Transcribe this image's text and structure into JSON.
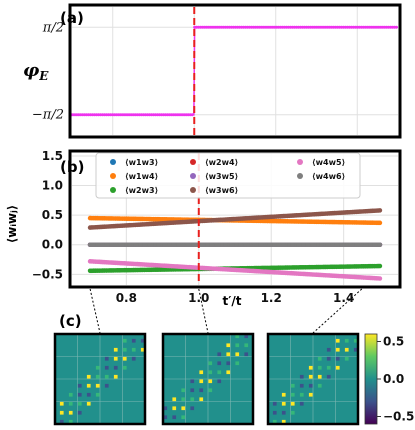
{
  "chart_data": [
    {
      "panel_label": "(a)",
      "type": "line",
      "ylabel": "φE",
      "ylabel_main": "φ",
      "ylabel_sub": "E",
      "yticks": [
        {
          "value": 1.5708,
          "label": "π/2"
        },
        {
          "value": -1.5708,
          "label": "−π/2"
        }
      ],
      "xlim": [
        0.7,
        1.5
      ],
      "ylim": [
        -2.3,
        2.3
      ],
      "grid": true,
      "series": [
        {
          "color": "#ee33ee",
          "points": [
            [
              0.7,
              -1.5708
            ],
            [
              0.999,
              -1.5708
            ],
            [
              1.001,
              1.5708
            ],
            [
              1.5,
              1.5708
            ]
          ]
        }
      ],
      "marker_spacing": 0.005,
      "vline": {
        "x": 1.0,
        "color": "#e8201e",
        "style": "dashed"
      }
    },
    {
      "panel_label": "(b)",
      "type": "line",
      "ylabel": "⟨wᵢwⱼ⟩",
      "xlabel": "t′/t",
      "xticks": [
        "0.8",
        "1.0",
        "1.2",
        "1.4"
      ],
      "yticks": [
        "−0.5",
        "0.0",
        "0.5",
        "1.0",
        "1.5"
      ],
      "xlim": [
        0.65,
        1.55
      ],
      "ylim": [
        -0.68,
        1.55
      ],
      "grid": true,
      "legend_position": "top",
      "marker_spacing": 0.005,
      "x_range": [
        0.7,
        1.5
      ],
      "series": [
        {
          "name": "⟨w1w3⟩",
          "color": "#1f77b4",
          "y_start": 0.0,
          "y_end": 0.0
        },
        {
          "name": "⟨w1w4⟩",
          "color": "#ff7f0e",
          "y_start": 0.45,
          "y_end": 0.37
        },
        {
          "name": "⟨w2w3⟩",
          "color": "#2ca02c",
          "y_start": -0.44,
          "y_end": -0.36
        },
        {
          "name": "⟨w2w4⟩",
          "color": "#d62728",
          "y_start": 0.0,
          "y_end": 0.0
        },
        {
          "name": "⟨w3w5⟩",
          "color": "#9467bd",
          "y_start": 0.0,
          "y_end": 0.0
        },
        {
          "name": "⟨w3w6⟩",
          "color": "#8c564b",
          "y_start": 0.29,
          "y_end": 0.58
        },
        {
          "name": "⟨w4w5⟩",
          "color": "#e377c2",
          "y_start": -0.28,
          "y_end": -0.57
        },
        {
          "name": "⟨w4w6⟩",
          "color": "#7f7f7f",
          "y_start": 0.0,
          "y_end": 0.0
        }
      ],
      "vline": {
        "x": 1.0,
        "color": "#e8201e",
        "style": "dashed"
      }
    },
    {
      "panel_label": "(c)",
      "type": "heatmap",
      "matrices_at_x": [
        0.7,
        1.0,
        1.45
      ],
      "colorbar": {
        "ticks": [
          "0.5",
          "0.0",
          "−0.5"
        ],
        "range": [
          -0.6,
          0.6
        ],
        "colormap": "viridis"
      }
    }
  ]
}
